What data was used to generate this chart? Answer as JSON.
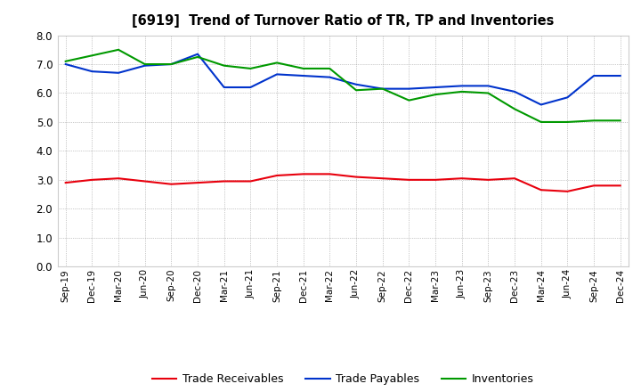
{
  "title": "[6919]  Trend of Turnover Ratio of TR, TP and Inventories",
  "x_labels": [
    "Sep-19",
    "Dec-19",
    "Mar-20",
    "Jun-20",
    "Sep-20",
    "Dec-20",
    "Mar-21",
    "Jun-21",
    "Sep-21",
    "Dec-21",
    "Mar-22",
    "Jun-22",
    "Sep-22",
    "Dec-22",
    "Mar-23",
    "Jun-23",
    "Sep-23",
    "Dec-23",
    "Mar-24",
    "Jun-24",
    "Sep-24",
    "Dec-24"
  ],
  "trade_receivables": [
    2.9,
    3.0,
    3.05,
    2.95,
    2.85,
    2.9,
    2.95,
    2.95,
    3.15,
    3.2,
    3.2,
    3.1,
    3.05,
    3.0,
    3.0,
    3.05,
    3.0,
    3.05,
    2.65,
    2.6,
    2.8,
    2.8
  ],
  "trade_payables": [
    7.0,
    6.75,
    6.7,
    6.95,
    7.0,
    7.35,
    6.2,
    6.2,
    6.65,
    6.6,
    6.55,
    6.3,
    6.15,
    6.15,
    6.2,
    6.25,
    6.25,
    6.05,
    5.6,
    5.85,
    6.6,
    6.6
  ],
  "inventories": [
    7.1,
    7.3,
    7.5,
    7.0,
    7.0,
    7.25,
    6.95,
    6.85,
    7.05,
    6.85,
    6.85,
    6.1,
    6.15,
    5.75,
    5.95,
    6.05,
    6.0,
    5.45,
    5.0,
    5.0,
    5.05,
    5.05
  ],
  "ylim": [
    0.0,
    8.0
  ],
  "yticks": [
    0.0,
    1.0,
    2.0,
    3.0,
    4.0,
    5.0,
    6.0,
    7.0,
    8.0
  ],
  "line_colors": {
    "trade_receivables": "#e8000d",
    "trade_payables": "#0033cc",
    "inventories": "#009900"
  },
  "legend_labels": [
    "Trade Receivables",
    "Trade Payables",
    "Inventories"
  ],
  "background_color": "#ffffff",
  "grid_color": "#999999"
}
